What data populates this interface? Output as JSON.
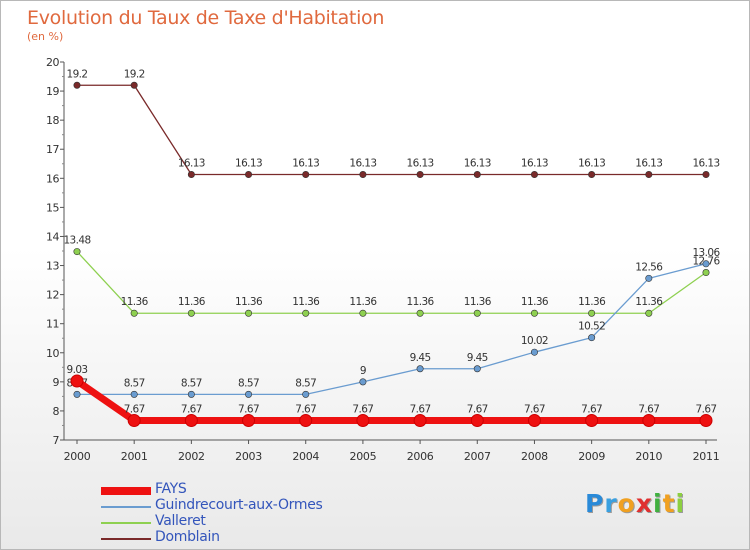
{
  "chart_data": {
    "type": "line",
    "title": "Evolution du Taux de Taxe d'Habitation",
    "subtitle": "(en %)",
    "x": [
      "2000",
      "2001",
      "2002",
      "2003",
      "2004",
      "2005",
      "2006",
      "2007",
      "2008",
      "2009",
      "2010",
      "2011"
    ],
    "ylim": [
      7,
      20
    ],
    "yticks": [
      7,
      8,
      9,
      10,
      11,
      12,
      13,
      14,
      15,
      16,
      17,
      18,
      19,
      20
    ],
    "grid": false,
    "legend_position": "bottom-left",
    "series": [
      {
        "name": "Domblain",
        "color": "#7a2a2a",
        "values": [
          19.2,
          19.2,
          16.13,
          16.13,
          16.13,
          16.13,
          16.13,
          16.13,
          16.13,
          16.13,
          16.13,
          16.13
        ],
        "labels": [
          "19.2",
          "19.2",
          "16.13",
          "16.13",
          "16.13",
          "16.13",
          "16.13",
          "16.13",
          "16.13",
          "16.13",
          "16.13",
          "16.13"
        ]
      },
      {
        "name": "Valleret",
        "color": "#8ed050",
        "values": [
          13.48,
          11.36,
          11.36,
          11.36,
          11.36,
          11.36,
          11.36,
          11.36,
          11.36,
          11.36,
          11.36,
          12.76
        ],
        "labels": [
          "13.48",
          "11.36",
          "11.36",
          "11.36",
          "11.36",
          "11.36",
          "11.36",
          "11.36",
          "11.36",
          "11.36",
          "11.36",
          "12.76"
        ]
      },
      {
        "name": "Guindrecourt-aux-Ormes",
        "color": "#6a9cd0",
        "values": [
          8.57,
          8.57,
          8.57,
          8.57,
          8.57,
          9,
          9.45,
          9.45,
          10.02,
          10.52,
          12.56,
          13.06
        ],
        "labels": [
          "8.57",
          "8.57",
          "8.57",
          "8.57",
          "8.57",
          "9",
          "9.45",
          "9.45",
          "10.02",
          "10.52",
          "12.56",
          "13.06"
        ]
      },
      {
        "name": "FAYS",
        "color": "#ee1111",
        "values": [
          9.03,
          7.67,
          7.67,
          7.67,
          7.67,
          7.67,
          7.67,
          7.67,
          7.67,
          7.67,
          7.67,
          7.67
        ],
        "labels": [
          "9.03",
          "7.67",
          "7.67",
          "7.67",
          "7.67",
          "7.67",
          "7.67",
          "7.67",
          "7.67",
          "7.67",
          "7.67",
          "7.67"
        ]
      }
    ]
  },
  "legend": [
    {
      "name": "FAYS",
      "color": "#ee1111"
    },
    {
      "name": "Guindrecourt-aux-Ormes",
      "color": "#6a9cd0"
    },
    {
      "name": "Valleret",
      "color": "#8ed050"
    },
    {
      "name": "Domblain",
      "color": "#7a2a2a"
    }
  ],
  "logo": {
    "letters": [
      "P",
      "r",
      "o",
      "x",
      "i",
      "t",
      "i"
    ],
    "colors": [
      "#2a8ad8",
      "#3aa0e0",
      "#f0a020",
      "#e03030",
      "#40b040",
      "#f0a020",
      "#8ccf40"
    ]
  }
}
